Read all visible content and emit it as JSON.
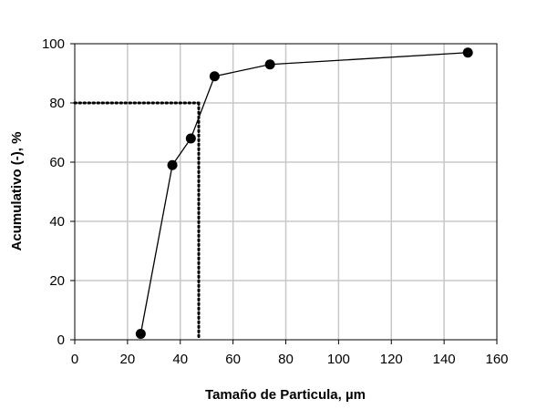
{
  "chart_data": {
    "type": "line",
    "title": "",
    "xlabel": "Tamaño de Particula, µm",
    "ylabel": "Acumulativo (-), %",
    "xlim": [
      0,
      160
    ],
    "ylim": [
      0,
      100
    ],
    "x_ticks": [
      "0",
      "20",
      "40",
      "60",
      "80",
      "100",
      "120",
      "140",
      "160"
    ],
    "y_ticks": [
      "0",
      "20",
      "40",
      "60",
      "80",
      "100"
    ],
    "grid": true,
    "legend": null,
    "series": [
      {
        "name": "Acumulativo",
        "x": [
          25,
          37,
          44,
          53,
          74,
          149
        ],
        "values": [
          2,
          59,
          68,
          89,
          93,
          97
        ],
        "marker": "circle",
        "color": "#000000"
      }
    ],
    "annotations": [
      {
        "type": "dotted-guide",
        "description": "horizontal at y=80 from x=0 to x≈47, vertical at x≈47 down to y=0",
        "y": 80,
        "x": 47
      }
    ]
  }
}
